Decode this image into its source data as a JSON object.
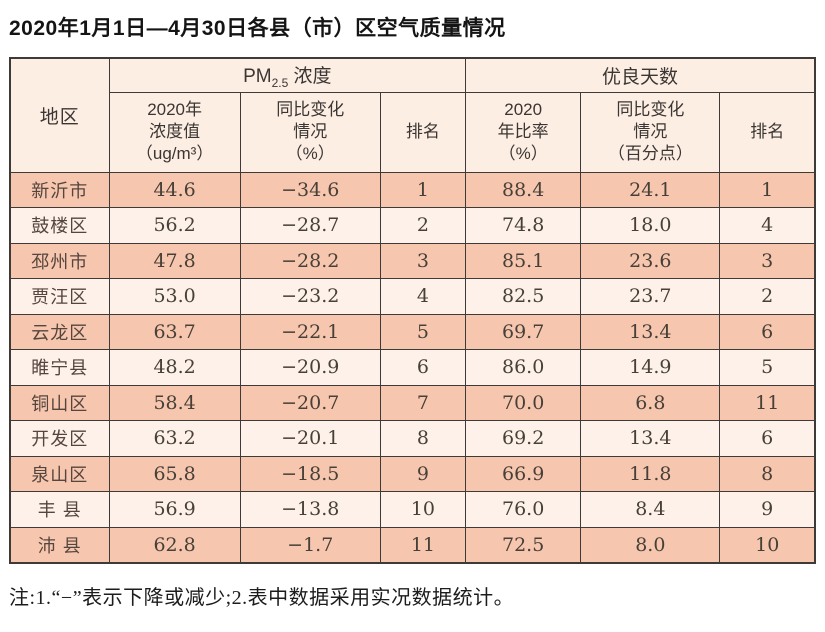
{
  "title": "2020年1月1日—4月30日各县（市）区空气质量情况",
  "table": {
    "headers": {
      "region": "地区",
      "pm25_group": {
        "prefix": "PM",
        "sub": "2.5",
        "suffix": " 浓度"
      },
      "good_days_group": "优良天数",
      "pm_value": "2020年\n浓度值\n（ug/m³）",
      "pm_change": "同比变化\n情况\n（%）",
      "pm_rank": "排名",
      "days_rate": "2020\n年比率\n（%）",
      "days_change": "同比变化\n情况\n（百分点）",
      "days_rank": "排名"
    },
    "rows": [
      [
        "新沂市",
        "44.6",
        "−34.6",
        "1",
        "88.4",
        "24.1",
        "1"
      ],
      [
        "鼓楼区",
        "56.2",
        "−28.7",
        "2",
        "74.8",
        "18.0",
        "4"
      ],
      [
        "邳州市",
        "47.8",
        "−28.2",
        "3",
        "85.1",
        "23.6",
        "3"
      ],
      [
        "贾汪区",
        "53.0",
        "−23.2",
        "4",
        "82.5",
        "23.7",
        "2"
      ],
      [
        "云龙区",
        "63.7",
        "−22.1",
        "5",
        "69.7",
        "13.4",
        "6"
      ],
      [
        "睢宁县",
        "48.2",
        "−20.9",
        "6",
        "86.0",
        "14.9",
        "5"
      ],
      [
        "铜山区",
        "58.4",
        "−20.7",
        "7",
        "70.0",
        "6.8",
        "11"
      ],
      [
        "开发区",
        "63.2",
        "−20.1",
        "8",
        "69.2",
        "13.4",
        "6"
      ],
      [
        "泉山区",
        "65.8",
        "−18.5",
        "9",
        "66.9",
        "11.8",
        "8"
      ],
      [
        "丰 县",
        "56.9",
        "−13.8",
        "10",
        "76.0",
        "8.4",
        "9"
      ],
      [
        "沛 县",
        "62.8",
        "−1.7",
        "11",
        "72.5",
        "8.0",
        "10"
      ]
    ]
  },
  "note": "注:1.“−”表示下降或减少;2.表中数据采用实况数据统计。",
  "colors": {
    "row_odd": "#f7c6ae",
    "row_even": "#fdf1e9",
    "header_bg": "#fdeee3",
    "border": "#3e3a37"
  }
}
